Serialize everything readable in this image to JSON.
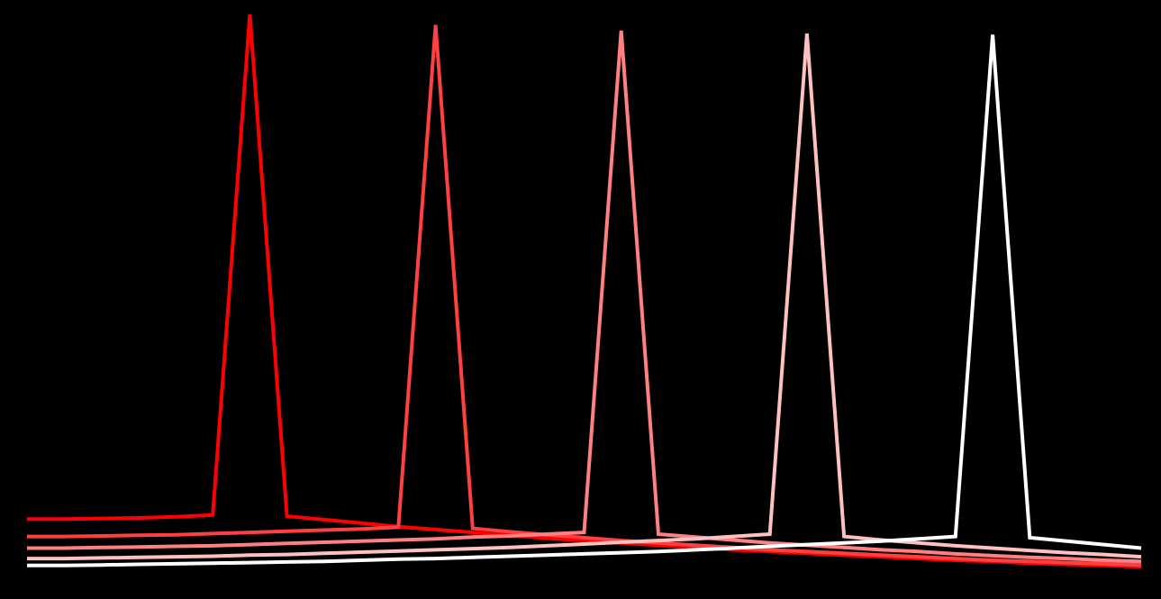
{
  "chart_data": {
    "type": "line",
    "title": "",
    "xlabel": "",
    "ylabel": "",
    "background": "#000000",
    "grid": false,
    "axes_visible": false,
    "legend": "none",
    "x": [
      0,
      1,
      2,
      3,
      4,
      5,
      6,
      7,
      8,
      9,
      10,
      11,
      12,
      13,
      14,
      15,
      16,
      17,
      18,
      19,
      20,
      21,
      22,
      23,
      24,
      25,
      26,
      27,
      28,
      29,
      30
    ],
    "xlim": [
      0,
      30
    ],
    "ylim": [
      0,
      1
    ],
    "series": [
      {
        "color": "#ff0000",
        "values": [
          0.13,
          0.13,
          0.131,
          0.132,
          0.134,
          0.137,
          1.0,
          0.135,
          0.129,
          0.123,
          0.117,
          0.112,
          0.107,
          0.102,
          0.097,
          0.093,
          0.089,
          0.085,
          0.081,
          0.077,
          0.074,
          0.071,
          0.068,
          0.065,
          0.062,
          0.059,
          0.057,
          0.054,
          0.052,
          0.05,
          0.048
        ]
      },
      {
        "color": "#ff4040",
        "values": [
          0.1,
          0.1,
          0.101,
          0.102,
          0.103,
          0.105,
          0.107,
          0.109,
          0.111,
          0.113,
          0.116,
          0.982,
          0.114,
          0.108,
          0.103,
          0.098,
          0.093,
          0.089,
          0.085,
          0.081,
          0.077,
          0.074,
          0.071,
          0.068,
          0.065,
          0.062,
          0.059,
          0.057,
          0.055,
          0.053,
          0.051
        ]
      },
      {
        "color": "#ff8080",
        "values": [
          0.08,
          0.08,
          0.081,
          0.082,
          0.083,
          0.084,
          0.086,
          0.088,
          0.09,
          0.092,
          0.094,
          0.096,
          0.099,
          0.101,
          0.104,
          0.107,
          0.972,
          0.104,
          0.099,
          0.094,
          0.089,
          0.085,
          0.081,
          0.077,
          0.074,
          0.07,
          0.067,
          0.064,
          0.062,
          0.059,
          0.057
        ]
      },
      {
        "color": "#ffc0c0",
        "values": [
          0.062,
          0.062,
          0.063,
          0.064,
          0.065,
          0.066,
          0.068,
          0.069,
          0.071,
          0.073,
          0.075,
          0.077,
          0.079,
          0.081,
          0.084,
          0.087,
          0.09,
          0.093,
          0.096,
          0.1,
          0.104,
          0.967,
          0.1,
          0.094,
          0.089,
          0.084,
          0.08,
          0.076,
          0.072,
          0.069,
          0.065
        ]
      },
      {
        "color": "#ffffff",
        "values": [
          0.05,
          0.05,
          0.051,
          0.052,
          0.053,
          0.054,
          0.055,
          0.056,
          0.057,
          0.059,
          0.061,
          0.062,
          0.064,
          0.066,
          0.068,
          0.07,
          0.072,
          0.074,
          0.077,
          0.08,
          0.083,
          0.086,
          0.089,
          0.092,
          0.096,
          0.1,
          0.965,
          0.098,
          0.092,
          0.086,
          0.08
        ]
      }
    ]
  }
}
